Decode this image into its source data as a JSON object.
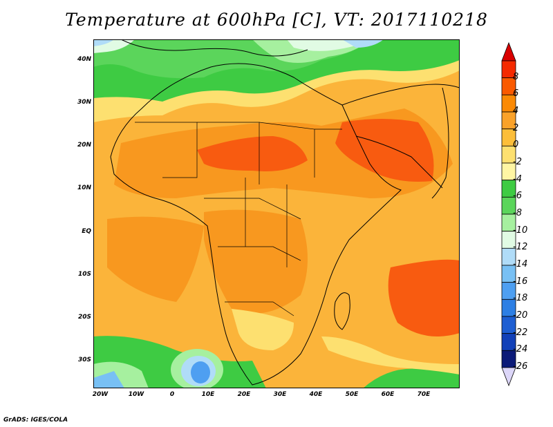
{
  "title": "Temperature at 600hPa [C], VT: 2017110218",
  "footer": "GrADS: IGES/COLA",
  "map": {
    "lat_labels": [
      "40N",
      "30N",
      "20N",
      "10N",
      "EQ",
      "10S",
      "20S",
      "30S"
    ],
    "lat_values": [
      40,
      30,
      20,
      10,
      0,
      -10,
      -20,
      -30
    ],
    "lon_labels": [
      "20W",
      "10W",
      "0",
      "10E",
      "20E",
      "30E",
      "40E",
      "50E",
      "60E",
      "70E"
    ],
    "lon_values": [
      -20,
      -10,
      0,
      10,
      20,
      30,
      40,
      50,
      60,
      70
    ],
    "lat_range": [
      -36,
      45
    ],
    "lon_range": [
      -22,
      80
    ]
  },
  "colorbar": {
    "labels": [
      "8",
      "6",
      "4",
      "2",
      "0",
      "-2",
      "-4",
      "-6",
      "-8",
      "-10",
      "-12",
      "-14",
      "-16",
      "-18",
      "-20",
      "-22",
      "-24",
      "-26"
    ],
    "colors": [
      "#f42a00",
      "#fa5a00",
      "#fb8a05",
      "#faa22a",
      "#fcbe3a",
      "#fde070",
      "#fff6a4",
      "#3ecb43",
      "#5bd55b",
      "#a6f09f",
      "#e1fbe4",
      "#b0dcf8",
      "#78c0f4",
      "#4e9ff1",
      "#2d7fe4",
      "#1d5ed2",
      "#1140b8",
      "#0b1a78"
    ],
    "top_cap_color": "#d90000",
    "bottom_cap_color": "#dcd6f8"
  },
  "palette": {
    "deep_orange": "#f85b10",
    "orange": "#f8981f",
    "light_orange": "#fbb43a",
    "yellow": "#fde070",
    "pale_yellow": "#fff6a4",
    "green": "#3ecb43",
    "light_green": "#5bd55b",
    "pale_green": "#a6f09f",
    "very_pale_green": "#e1fbe4",
    "light_blue": "#b0dcf8",
    "blue": "#78c0f4",
    "deep_blue": "#4e9ff1"
  }
}
